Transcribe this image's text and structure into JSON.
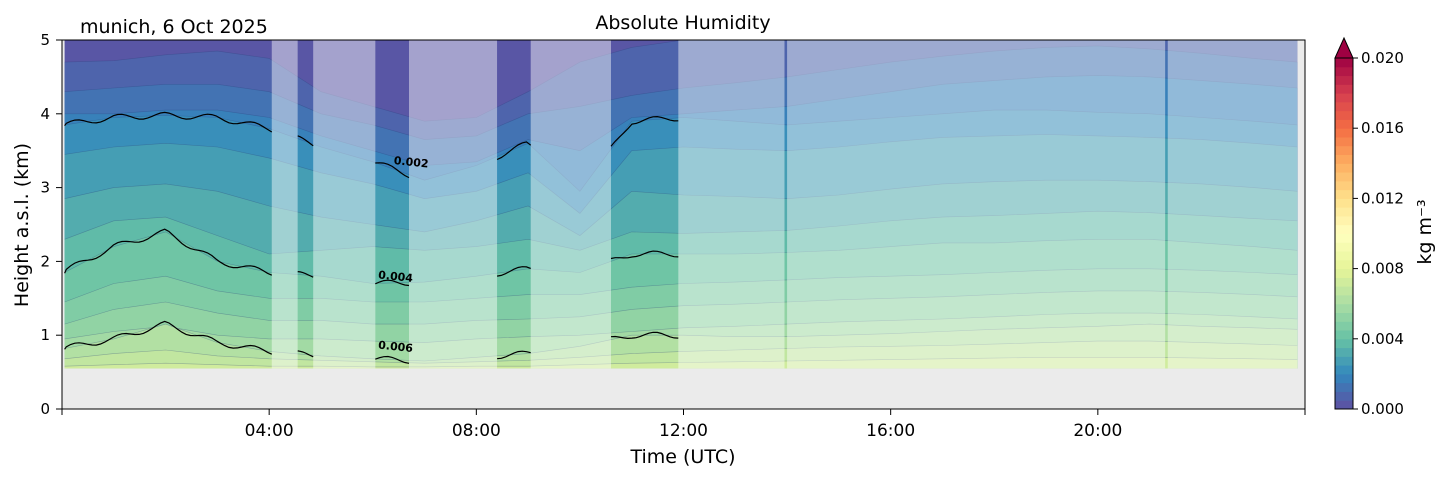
{
  "chart_data": {
    "type": "heatmap",
    "title": "Absolute Humidity",
    "location_label": "munich, 6 Oct 2025",
    "xlabel": "Time (UTC)",
    "ylabel": "Height a.s.l. (km)",
    "xlim_hours": [
      0,
      24
    ],
    "ylim_km": [
      0,
      5
    ],
    "x_ticks": [
      {
        "hour": 4,
        "label": "04:00"
      },
      {
        "hour": 8,
        "label": "08:00"
      },
      {
        "hour": 12,
        "label": "12:00"
      },
      {
        "hour": 16,
        "label": "16:00"
      },
      {
        "hour": 20,
        "label": "20:00"
      }
    ],
    "y_ticks": [
      {
        "km": 0,
        "label": "0"
      },
      {
        "km": 1,
        "label": "1"
      },
      {
        "km": 2,
        "label": "2"
      },
      {
        "km": 3,
        "label": "3"
      },
      {
        "km": 4,
        "label": "4"
      },
      {
        "km": 5,
        "label": "5"
      }
    ],
    "ground_height_km": 0.55,
    "data_end_hour": 23.85,
    "colorbar": {
      "label": "kg m⁻³",
      "range": [
        0.0,
        0.02
      ],
      "extend": "max",
      "ticks": [
        {
          "value": 0.0,
          "label": "0.000"
        },
        {
          "value": 0.004,
          "label": "0.004"
        },
        {
          "value": 0.008,
          "label": "0.008"
        },
        {
          "value": 0.012,
          "label": "0.012"
        },
        {
          "value": 0.016,
          "label": "0.016"
        },
        {
          "value": 0.02,
          "label": "0.020"
        }
      ]
    },
    "filled_levels": [
      0.0,
      0.0005,
      0.001,
      0.0015,
      0.002,
      0.0025,
      0.003,
      0.0035,
      0.004,
      0.0045,
      0.005,
      0.0055,
      0.006,
      0.0065,
      0.007
    ],
    "isoline_heights_km": {
      "hours": [
        0,
        1,
        2,
        3,
        4,
        5,
        6,
        7,
        8,
        9,
        10,
        11,
        12,
        13,
        14,
        15,
        16,
        17,
        18,
        19,
        20,
        21,
        22,
        23,
        24
      ],
      "q0_0005": [
        4.7,
        4.72,
        4.8,
        4.85,
        4.75,
        4.3,
        4.1,
        3.9,
        3.95,
        4.3,
        4.7,
        4.9,
        5.0,
        5.0,
        5.0,
        5.0,
        5.0,
        5.0,
        5.0,
        5.0,
        5.0,
        5.0,
        5.0,
        5.0,
        5.0
      ],
      "q0_001": [
        4.3,
        4.35,
        4.4,
        4.4,
        4.3,
        4.0,
        3.85,
        3.65,
        3.7,
        4.0,
        4.1,
        4.25,
        4.35,
        4.42,
        4.5,
        4.6,
        4.7,
        4.78,
        4.85,
        4.9,
        4.92,
        4.88,
        4.82,
        4.75,
        4.7
      ],
      "q0_0015": [
        4.0,
        4.0,
        4.05,
        4.05,
        3.95,
        3.7,
        3.5,
        3.3,
        3.35,
        3.65,
        3.5,
        3.95,
        4.0,
        4.05,
        4.1,
        4.2,
        4.3,
        4.4,
        4.45,
        4.5,
        4.52,
        4.5,
        4.45,
        4.4,
        4.35
      ],
      "q0_002": [
        3.85,
        3.95,
        3.98,
        3.95,
        3.8,
        3.55,
        3.35,
        3.1,
        3.3,
        3.6,
        2.95,
        3.9,
        3.95,
        3.9,
        3.85,
        3.9,
        3.95,
        4.0,
        4.05,
        4.05,
        4.02,
        4.0,
        3.95,
        3.9,
        3.85
      ],
      "q0_0025": [
        3.45,
        3.55,
        3.6,
        3.55,
        3.4,
        3.2,
        3.05,
        2.85,
        2.95,
        3.2,
        2.65,
        3.5,
        3.55,
        3.52,
        3.5,
        3.55,
        3.62,
        3.68,
        3.7,
        3.72,
        3.7,
        3.68,
        3.65,
        3.6,
        3.55
      ],
      "q0_003": [
        2.85,
        3.0,
        3.05,
        2.95,
        2.75,
        2.6,
        2.5,
        2.4,
        2.55,
        2.75,
        2.35,
        2.95,
        2.9,
        2.88,
        2.85,
        2.9,
        2.98,
        3.05,
        3.08,
        3.1,
        3.1,
        3.08,
        3.05,
        3.0,
        2.95
      ],
      "q0_0035": [
        2.3,
        2.55,
        2.6,
        2.35,
        2.1,
        2.15,
        2.2,
        2.15,
        2.2,
        2.3,
        2.15,
        2.4,
        2.38,
        2.4,
        2.42,
        2.48,
        2.55,
        2.6,
        2.62,
        2.65,
        2.68,
        2.66,
        2.62,
        2.58,
        2.55
      ],
      "q0_004": [
        1.85,
        2.2,
        2.4,
        2.0,
        1.85,
        1.8,
        1.7,
        1.72,
        1.8,
        1.9,
        1.85,
        2.1,
        2.1,
        2.1,
        2.12,
        2.15,
        2.2,
        2.25,
        2.25,
        2.28,
        2.3,
        2.3,
        2.25,
        2.2,
        2.15
      ],
      "q0_0045": [
        1.45,
        1.7,
        1.8,
        1.6,
        1.5,
        1.5,
        1.45,
        1.45,
        1.5,
        1.55,
        1.55,
        1.65,
        1.7,
        1.72,
        1.75,
        1.78,
        1.8,
        1.82,
        1.85,
        1.88,
        1.9,
        1.9,
        1.88,
        1.85,
        1.82
      ],
      "q0_005": [
        1.15,
        1.35,
        1.45,
        1.3,
        1.2,
        1.2,
        1.15,
        1.15,
        1.2,
        1.22,
        1.25,
        1.35,
        1.4,
        1.42,
        1.45,
        1.48,
        1.5,
        1.52,
        1.55,
        1.58,
        1.6,
        1.6,
        1.58,
        1.55,
        1.52
      ],
      "q0_0055": [
        0.95,
        1.05,
        1.12,
        1.0,
        0.95,
        0.95,
        0.92,
        0.9,
        0.95,
        0.98,
        1.0,
        1.05,
        1.1,
        1.12,
        1.15,
        1.18,
        1.2,
        1.22,
        1.25,
        1.28,
        1.3,
        1.3,
        1.28,
        1.25,
        1.22
      ],
      "q0_006": [
        0.82,
        0.95,
        1.15,
        0.9,
        0.78,
        0.72,
        0.68,
        0.65,
        0.7,
        0.75,
        0.85,
        1.0,
        1.0,
        0.98,
        0.98,
        1.0,
        1.02,
        1.05,
        1.08,
        1.1,
        1.12,
        1.15,
        1.12,
        1.1,
        1.08
      ],
      "q0_0065": [
        0.68,
        0.75,
        0.8,
        0.72,
        0.68,
        0.66,
        0.64,
        0.62,
        0.64,
        0.66,
        0.7,
        0.75,
        0.78,
        0.8,
        0.82,
        0.84,
        0.85,
        0.86,
        0.88,
        0.9,
        0.92,
        0.92,
        0.9,
        0.88,
        0.86
      ],
      "q0_007": [
        0.58,
        0.6,
        0.62,
        0.6,
        0.58,
        0.58,
        0.57,
        0.57,
        0.58,
        0.58,
        0.6,
        0.62,
        0.63,
        0.64,
        0.65,
        0.66,
        0.67,
        0.68,
        0.69,
        0.7,
        0.7,
        0.7,
        0.69,
        0.68,
        0.67
      ]
    },
    "clear_sky_intervals_hours": [
      [
        0.0,
        4.05
      ],
      [
        4.55,
        4.85
      ],
      [
        6.05,
        6.7
      ],
      [
        8.4,
        9.05
      ],
      [
        10.6,
        11.9
      ],
      [
        13.95,
        14.0
      ],
      [
        21.3,
        21.35
      ]
    ],
    "contour_labels": [
      {
        "text": "0.002",
        "hour": 6.4,
        "km": 3.32
      },
      {
        "text": "0.004",
        "hour": 6.1,
        "km": 1.77
      },
      {
        "text": "0.006",
        "hour": 6.1,
        "km": 0.82
      }
    ]
  }
}
